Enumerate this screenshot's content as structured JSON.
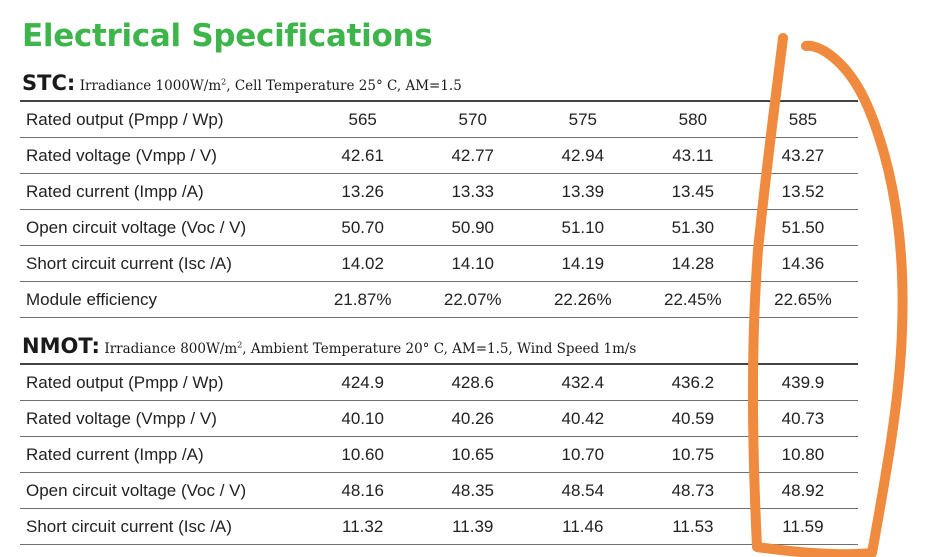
{
  "title": "Electrical Specifications",
  "stc": {
    "label": "STC:",
    "desc_a": "Irradiance 1000W/m",
    "desc_sup": "2",
    "desc_b": ", Cell Temperature 25° C, AM=1.5",
    "rows": [
      {
        "label": "Rated output (Pmpp / Wp)",
        "values": [
          "565",
          "570",
          "575",
          "580",
          "585"
        ]
      },
      {
        "label": "Rated voltage (Vmpp / V)",
        "values": [
          "42.61",
          "42.77",
          "42.94",
          "43.11",
          "43.27"
        ]
      },
      {
        "label": "Rated current (Impp /A)",
        "values": [
          "13.26",
          "13.33",
          "13.39",
          "13.45",
          "13.52"
        ]
      },
      {
        "label": "Open circuit voltage (Voc / V)",
        "values": [
          "50.70",
          "50.90",
          "51.10",
          "51.30",
          "51.50"
        ]
      },
      {
        "label": "Short circuit current (Isc /A)",
        "values": [
          "14.02",
          "14.10",
          "14.19",
          "14.28",
          "14.36"
        ]
      },
      {
        "label": "Module efficiency",
        "values": [
          "21.87%",
          "22.07%",
          "22.26%",
          "22.45%",
          "22.65%"
        ]
      }
    ]
  },
  "nmot": {
    "label": "NMOT:",
    "desc_a": "Irradiance 800W/m",
    "desc_sup": "2",
    "desc_b": ", Ambient Temperature 20° C, AM=1.5, Wind Speed 1m/s",
    "rows": [
      {
        "label": "Rated output (Pmpp / Wp)",
        "values": [
          "424.9",
          "428.6",
          "432.4",
          "436.2",
          "439.9"
        ]
      },
      {
        "label": "Rated voltage (Vmpp / V)",
        "values": [
          "40.10",
          "40.26",
          "40.42",
          "40.59",
          "40.73"
        ]
      },
      {
        "label": "Rated current (Impp /A)",
        "values": [
          "10.60",
          "10.65",
          "10.70",
          "10.75",
          "10.80"
        ]
      },
      {
        "label": "Open circuit voltage (Voc / V)",
        "values": [
          "48.16",
          "48.35",
          "48.54",
          "48.73",
          "48.92"
        ]
      },
      {
        "label": "Short circuit current (Isc /A)",
        "values": [
          "11.32",
          "11.39",
          "11.46",
          "11.53",
          "11.59"
        ]
      }
    ]
  },
  "colors": {
    "title": "#3db54a",
    "annotation": "#ef8a3e",
    "rule": "#6f6f6f"
  }
}
